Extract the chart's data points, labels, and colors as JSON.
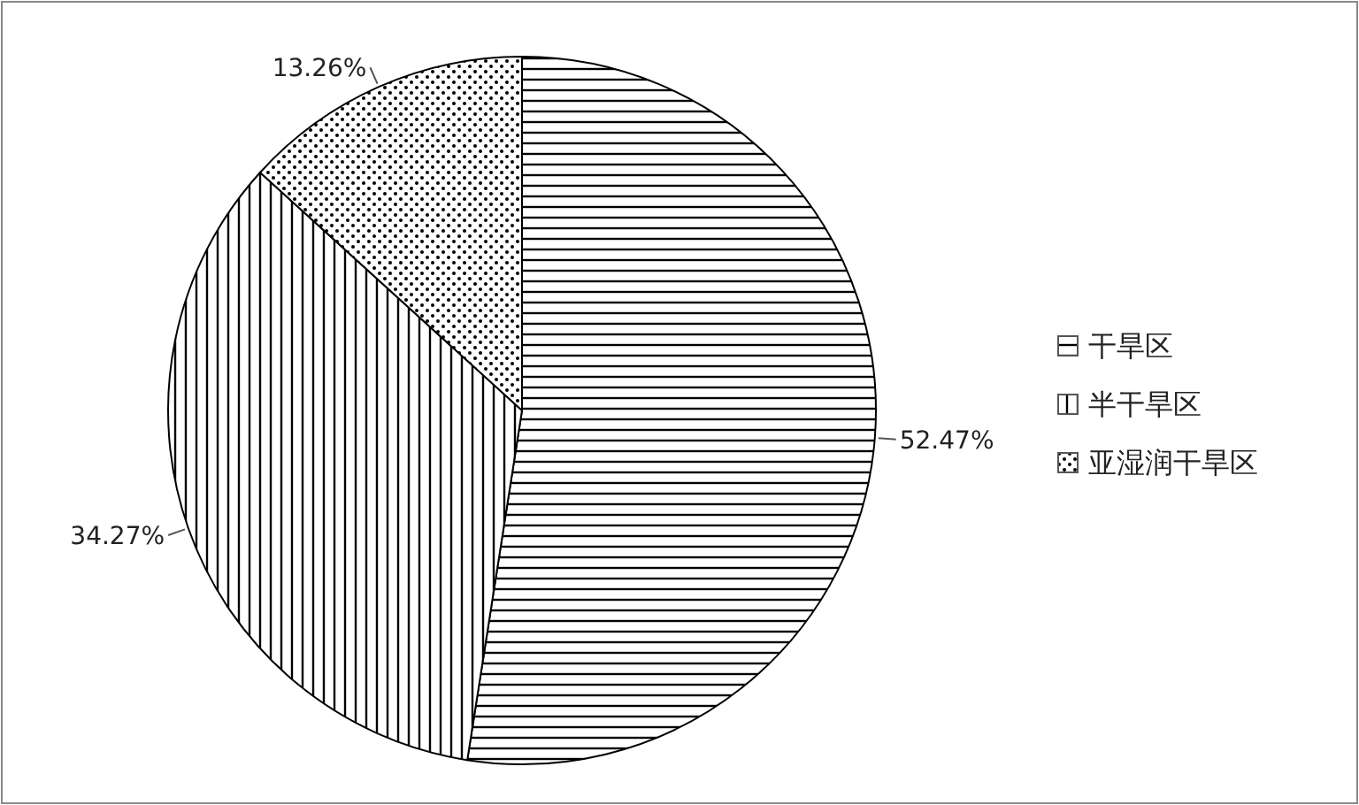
{
  "chart_data": {
    "type": "pie",
    "categories": [
      "干旱区",
      "半干旱区",
      "亚湿润干旱区"
    ],
    "values": [
      52.47,
      34.27,
      13.26
    ],
    "colors": [
      "#000000",
      "#000000",
      "#000000"
    ],
    "value_labels": [
      "52.47%",
      "34.27%",
      "13.26%"
    ],
    "legend": "right"
  }
}
